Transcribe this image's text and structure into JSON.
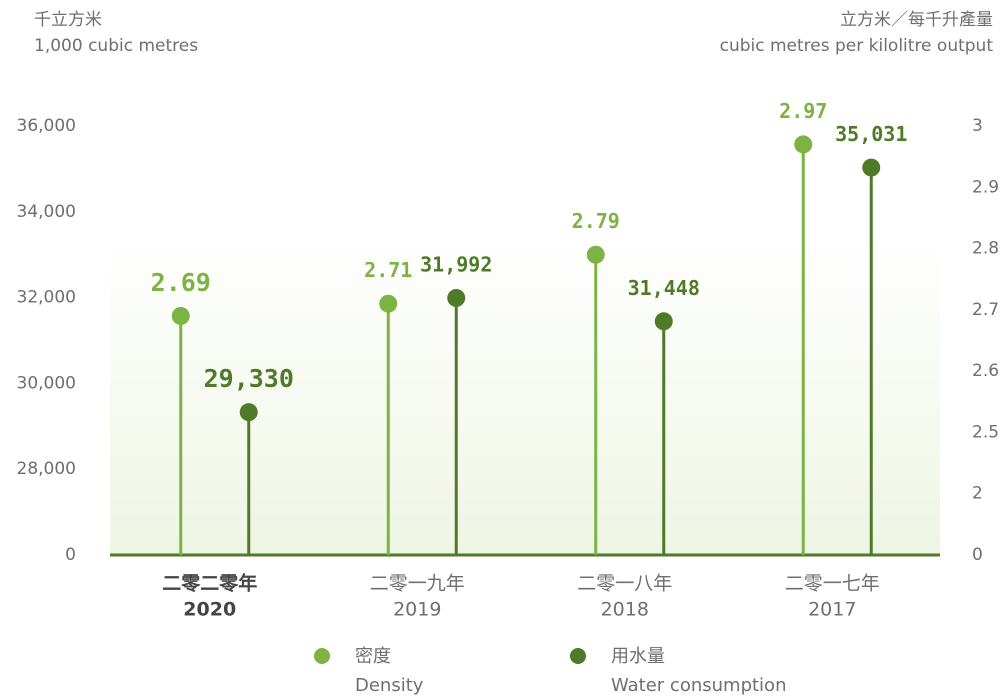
{
  "chart_data": {
    "type": "lollipop",
    "ylabel": "千立方米",
    "ylabel_en": "1,000 cubic metres",
    "y2label": "立方米／每千升產量",
    "y2label_en": "cubic metres per kilolitre output",
    "categories": [
      "2020",
      "2019",
      "2018",
      "2017"
    ],
    "categories_zh": [
      "二零二零年",
      "二零一九年",
      "二零一八年",
      "二零一七年"
    ],
    "series": [
      {
        "name": "Density",
        "name_zh": "密度",
        "color": "#7db343",
        "axis": "y2",
        "values": [
          2.69,
          2.71,
          2.79,
          2.97
        ]
      },
      {
        "name": "Water consumption",
        "name_zh": "用水量",
        "color": "#4f7a28",
        "values": [
          29330,
          31992,
          31448,
          35031
        ],
        "value_labels": [
          "29,330",
          "31,992",
          "31,448",
          "35,031"
        ]
      }
    ],
    "ylim": [
      0,
      36000
    ],
    "yticks": [
      0,
      {
        "value": 28000,
        "label": "28,000"
      },
      {
        "value": 30000,
        "label": "30,000"
      },
      {
        "value": 32000,
        "label": "32,000"
      },
      {
        "value": 34000,
        "label": "34,000"
      },
      {
        "value": 36000,
        "label": "36,000"
      }
    ],
    "y2lim": [
      0,
      3
    ],
    "y2ticks": [
      0,
      2,
      2.5,
      2.6,
      2.7,
      2.8,
      2.9,
      3
    ]
  }
}
